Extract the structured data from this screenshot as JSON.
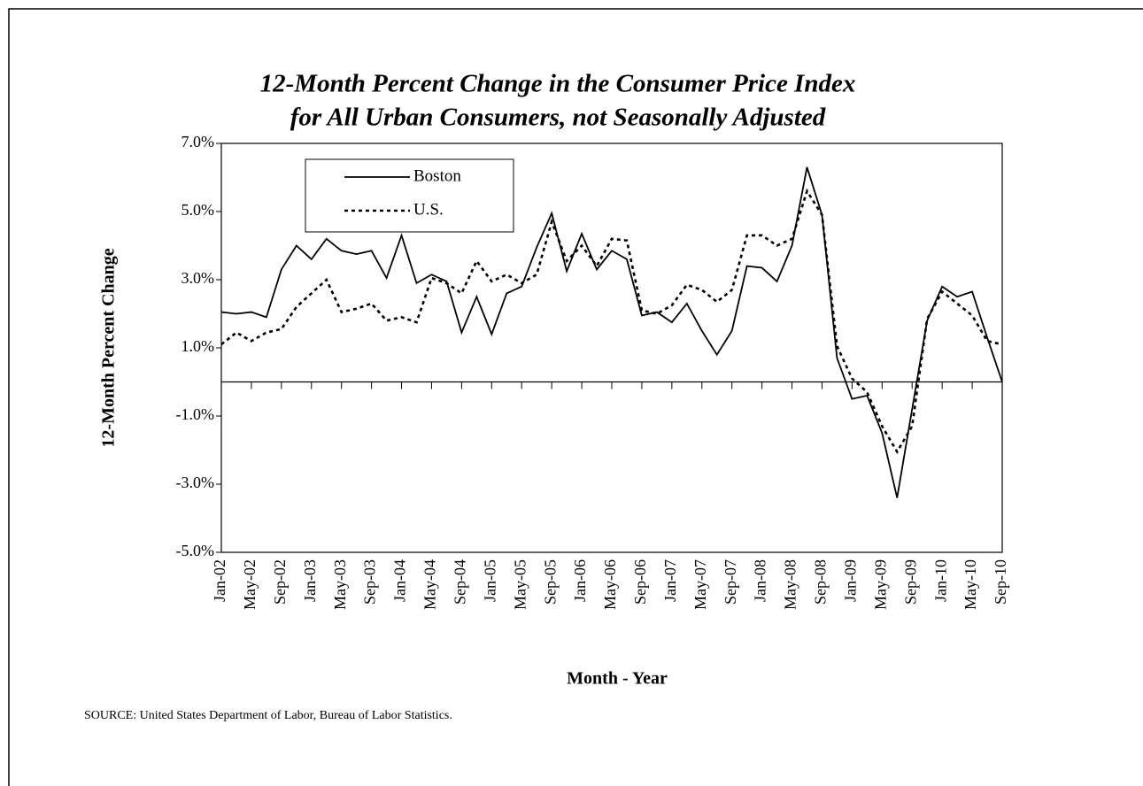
{
  "chart_data": {
    "type": "line",
    "title": [
      "12-Month Percent Change in the Consumer Price Index",
      "for All Urban Consumers, not Seasonally Adjusted"
    ],
    "y_label": "12-Month Percent Change",
    "x_label": "Month - Year",
    "source": "SOURCE:  United States Department of Labor, Bureau of Labor Statistics.",
    "categories": [
      "Jan-02",
      null,
      "May-02",
      null,
      "Sep-02",
      null,
      "Jan-03",
      null,
      "May-03",
      null,
      "Sep-03",
      null,
      "Jan-04",
      null,
      "May-04",
      null,
      "Sep-04",
      null,
      "Jan-05",
      null,
      "May-05",
      null,
      "Sep-05",
      null,
      "Jan-06",
      null,
      "May-06",
      null,
      "Sep-06",
      null,
      "Jan-07",
      null,
      "May-07",
      null,
      "Sep-07",
      null,
      "Jan-08",
      null,
      "May-08",
      null,
      "Sep-08",
      null,
      "Jan-09",
      null,
      "May-09",
      null,
      "Sep-09",
      null,
      "Jan-10",
      null,
      "May-10",
      null,
      "Sep-10"
    ],
    "series": [
      {
        "name": "Boston",
        "color": "#000000",
        "dash": "solid",
        "values": [
          2.05,
          2.0,
          2.05,
          1.9,
          3.3,
          4.0,
          3.6,
          4.2,
          3.85,
          3.75,
          3.85,
          3.05,
          4.3,
          2.9,
          3.15,
          2.95,
          1.45,
          2.5,
          1.4,
          2.6,
          2.8,
          3.95,
          4.95,
          3.25,
          4.35,
          3.3,
          3.85,
          3.6,
          1.95,
          2.05,
          1.75,
          2.3,
          1.5,
          0.8,
          1.5,
          3.4,
          3.35,
          2.95,
          4.0,
          6.3,
          4.9,
          0.7,
          -0.5,
          -0.4,
          -1.5,
          -3.4,
          -0.8,
          1.8,
          2.8,
          2.5,
          2.65,
          1.3,
          0.0
        ]
      },
      {
        "name": "U.S.",
        "color": "#000000",
        "dash": "dotted",
        "values": [
          1.1,
          1.45,
          1.2,
          1.45,
          1.55,
          2.2,
          2.6,
          3.0,
          2.05,
          2.15,
          2.3,
          1.8,
          1.9,
          1.75,
          3.05,
          2.9,
          2.6,
          3.55,
          2.95,
          3.15,
          2.9,
          3.15,
          4.7,
          3.55,
          4.0,
          3.4,
          4.2,
          4.15,
          2.1,
          2.0,
          2.25,
          2.85,
          2.7,
          2.35,
          2.7,
          4.3,
          4.3,
          4.0,
          4.2,
          5.6,
          4.9,
          1.05,
          0.1,
          -0.3,
          -1.3,
          -2.05,
          -1.3,
          1.85,
          2.65,
          2.3,
          1.95,
          1.2,
          1.1
        ]
      }
    ],
    "ylim": [
      -5,
      7
    ],
    "yticks": [
      {
        "value": -5,
        "label": "-5.0%"
      },
      {
        "value": -3,
        "label": "-3.0%"
      },
      {
        "value": -1,
        "label": "-1.0%"
      },
      {
        "value": 1,
        "label": "1.0%"
      },
      {
        "value": 3,
        "label": "3.0%"
      },
      {
        "value": 5,
        "label": "5.0%"
      },
      {
        "value": 7,
        "label": "7.0%"
      }
    ],
    "grid": false,
    "legend": "upper-left"
  }
}
